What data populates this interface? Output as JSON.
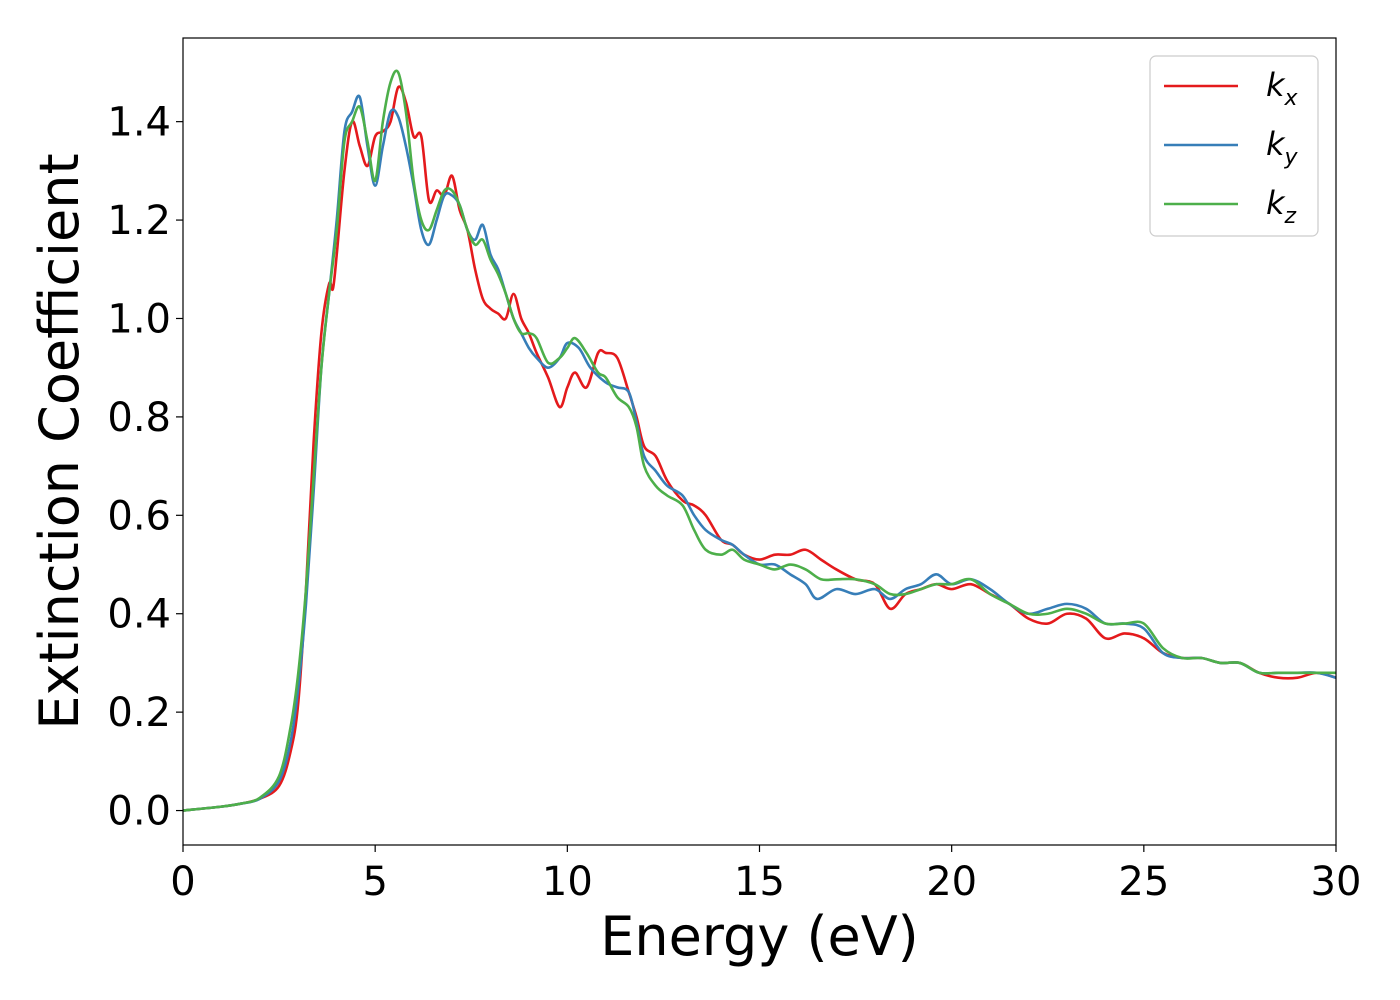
{
  "chart_data": {
    "type": "line",
    "title": "",
    "xlabel": "Energy (eV)",
    "ylabel": "Extinction Coefficient",
    "xlim": [
      0,
      30
    ],
    "ylim": [
      -0.07,
      1.57
    ],
    "xticks": [
      0,
      5,
      10,
      15,
      20,
      25,
      30
    ],
    "xtick_labels": [
      "0",
      "5",
      "10",
      "15",
      "20",
      "25",
      "30"
    ],
    "yticks": [
      0.0,
      0.2,
      0.4,
      0.6,
      0.8,
      1.0,
      1.2,
      1.4
    ],
    "ytick_labels": [
      "0.0",
      "0.2",
      "0.4",
      "0.6",
      "0.8",
      "1.0",
      "1.2",
      "1.4"
    ],
    "grid": false,
    "legend_position": "top-right",
    "series": [
      {
        "name": "k_x",
        "label_base": "k",
        "label_sub": "x",
        "color": "#e41a1c",
        "points": [
          [
            0,
            0.0
          ],
          [
            1,
            0.008
          ],
          [
            1.5,
            0.014
          ],
          [
            2,
            0.024
          ],
          [
            2.5,
            0.05
          ],
          [
            2.8,
            0.12
          ],
          [
            3.0,
            0.22
          ],
          [
            3.2,
            0.45
          ],
          [
            3.4,
            0.75
          ],
          [
            3.6,
            0.97
          ],
          [
            3.8,
            1.07
          ],
          [
            3.9,
            1.06
          ],
          [
            4.0,
            1.13
          ],
          [
            4.2,
            1.3
          ],
          [
            4.4,
            1.4
          ],
          [
            4.6,
            1.35
          ],
          [
            4.8,
            1.31
          ],
          [
            5.0,
            1.37
          ],
          [
            5.2,
            1.38
          ],
          [
            5.4,
            1.4
          ],
          [
            5.6,
            1.47
          ],
          [
            5.8,
            1.44
          ],
          [
            6.0,
            1.37
          ],
          [
            6.2,
            1.37
          ],
          [
            6.4,
            1.24
          ],
          [
            6.6,
            1.26
          ],
          [
            6.8,
            1.25
          ],
          [
            7.0,
            1.29
          ],
          [
            7.2,
            1.22
          ],
          [
            7.4,
            1.18
          ],
          [
            7.6,
            1.1
          ],
          [
            7.8,
            1.04
          ],
          [
            8.0,
            1.02
          ],
          [
            8.2,
            1.01
          ],
          [
            8.4,
            1.0
          ],
          [
            8.6,
            1.05
          ],
          [
            8.8,
            1.0
          ],
          [
            9.0,
            0.97
          ],
          [
            9.2,
            0.93
          ],
          [
            9.5,
            0.88
          ],
          [
            9.8,
            0.82
          ],
          [
            10.0,
            0.86
          ],
          [
            10.2,
            0.89
          ],
          [
            10.5,
            0.86
          ],
          [
            10.8,
            0.93
          ],
          [
            11.0,
            0.93
          ],
          [
            11.3,
            0.92
          ],
          [
            11.6,
            0.85
          ],
          [
            11.8,
            0.8
          ],
          [
            12.0,
            0.74
          ],
          [
            12.3,
            0.72
          ],
          [
            12.6,
            0.67
          ],
          [
            13.0,
            0.63
          ],
          [
            13.3,
            0.62
          ],
          [
            13.6,
            0.6
          ],
          [
            14.0,
            0.55
          ],
          [
            14.3,
            0.54
          ],
          [
            14.6,
            0.52
          ],
          [
            15.0,
            0.51
          ],
          [
            15.4,
            0.52
          ],
          [
            15.8,
            0.52
          ],
          [
            16.2,
            0.53
          ],
          [
            16.6,
            0.51
          ],
          [
            17.0,
            0.49
          ],
          [
            17.5,
            0.47
          ],
          [
            18.0,
            0.46
          ],
          [
            18.4,
            0.41
          ],
          [
            18.8,
            0.44
          ],
          [
            19.2,
            0.45
          ],
          [
            19.6,
            0.46
          ],
          [
            20.0,
            0.45
          ],
          [
            20.5,
            0.46
          ],
          [
            21.0,
            0.44
          ],
          [
            21.5,
            0.42
          ],
          [
            22.0,
            0.39
          ],
          [
            22.5,
            0.38
          ],
          [
            23.0,
            0.4
          ],
          [
            23.5,
            0.39
          ],
          [
            24.0,
            0.35
          ],
          [
            24.5,
            0.36
          ],
          [
            25.0,
            0.35
          ],
          [
            25.5,
            0.32
          ],
          [
            26.0,
            0.31
          ],
          [
            26.5,
            0.31
          ],
          [
            27.0,
            0.3
          ],
          [
            27.5,
            0.3
          ],
          [
            28.0,
            0.28
          ],
          [
            28.5,
            0.27
          ],
          [
            29.0,
            0.27
          ],
          [
            29.5,
            0.28
          ],
          [
            30.0,
            0.27
          ]
        ]
      },
      {
        "name": "k_y",
        "label_base": "k",
        "label_sub": "y",
        "color": "#377eb8",
        "points": [
          [
            0,
            0.0
          ],
          [
            1,
            0.008
          ],
          [
            1.5,
            0.014
          ],
          [
            2,
            0.024
          ],
          [
            2.5,
            0.06
          ],
          [
            2.8,
            0.14
          ],
          [
            3.0,
            0.25
          ],
          [
            3.2,
            0.42
          ],
          [
            3.4,
            0.65
          ],
          [
            3.6,
            0.9
          ],
          [
            3.8,
            1.05
          ],
          [
            4.0,
            1.2
          ],
          [
            4.2,
            1.38
          ],
          [
            4.4,
            1.42
          ],
          [
            4.6,
            1.45
          ],
          [
            4.8,
            1.35
          ],
          [
            5.0,
            1.27
          ],
          [
            5.2,
            1.35
          ],
          [
            5.4,
            1.42
          ],
          [
            5.6,
            1.41
          ],
          [
            5.8,
            1.35
          ],
          [
            6.0,
            1.27
          ],
          [
            6.2,
            1.18
          ],
          [
            6.4,
            1.15
          ],
          [
            6.6,
            1.2
          ],
          [
            6.8,
            1.25
          ],
          [
            7.0,
            1.25
          ],
          [
            7.2,
            1.23
          ],
          [
            7.4,
            1.18
          ],
          [
            7.6,
            1.16
          ],
          [
            7.8,
            1.19
          ],
          [
            8.0,
            1.13
          ],
          [
            8.2,
            1.1
          ],
          [
            8.4,
            1.05
          ],
          [
            8.6,
            1.0
          ],
          [
            8.8,
            0.97
          ],
          [
            9.0,
            0.94
          ],
          [
            9.2,
            0.92
          ],
          [
            9.5,
            0.9
          ],
          [
            9.8,
            0.92
          ],
          [
            10.0,
            0.95
          ],
          [
            10.3,
            0.94
          ],
          [
            10.6,
            0.9
          ],
          [
            11.0,
            0.87
          ],
          [
            11.3,
            0.86
          ],
          [
            11.6,
            0.85
          ],
          [
            11.8,
            0.79
          ],
          [
            12.0,
            0.72
          ],
          [
            12.3,
            0.69
          ],
          [
            12.6,
            0.66
          ],
          [
            13.0,
            0.64
          ],
          [
            13.3,
            0.6
          ],
          [
            13.6,
            0.57
          ],
          [
            14.0,
            0.55
          ],
          [
            14.3,
            0.54
          ],
          [
            14.6,
            0.52
          ],
          [
            15.0,
            0.5
          ],
          [
            15.4,
            0.5
          ],
          [
            15.8,
            0.48
          ],
          [
            16.2,
            0.46
          ],
          [
            16.5,
            0.43
          ],
          [
            17.0,
            0.45
          ],
          [
            17.5,
            0.44
          ],
          [
            18.0,
            0.45
          ],
          [
            18.4,
            0.43
          ],
          [
            18.8,
            0.45
          ],
          [
            19.2,
            0.46
          ],
          [
            19.6,
            0.48
          ],
          [
            20.0,
            0.46
          ],
          [
            20.5,
            0.47
          ],
          [
            21.0,
            0.45
          ],
          [
            21.5,
            0.42
          ],
          [
            22.0,
            0.4
          ],
          [
            22.5,
            0.41
          ],
          [
            23.0,
            0.42
          ],
          [
            23.5,
            0.41
          ],
          [
            24.0,
            0.38
          ],
          [
            24.5,
            0.38
          ],
          [
            25.0,
            0.37
          ],
          [
            25.5,
            0.32
          ],
          [
            26.0,
            0.31
          ],
          [
            26.5,
            0.31
          ],
          [
            27.0,
            0.3
          ],
          [
            27.5,
            0.3
          ],
          [
            28.0,
            0.28
          ],
          [
            28.5,
            0.28
          ],
          [
            29.0,
            0.28
          ],
          [
            29.5,
            0.28
          ],
          [
            30.0,
            0.27
          ]
        ]
      },
      {
        "name": "k_z",
        "label_base": "k",
        "label_sub": "z",
        "color": "#4daf4a",
        "points": [
          [
            0,
            0.0
          ],
          [
            1,
            0.008
          ],
          [
            1.5,
            0.014
          ],
          [
            2,
            0.026
          ],
          [
            2.5,
            0.07
          ],
          [
            2.8,
            0.17
          ],
          [
            3.0,
            0.28
          ],
          [
            3.2,
            0.45
          ],
          [
            3.4,
            0.68
          ],
          [
            3.6,
            0.9
          ],
          [
            3.8,
            1.05
          ],
          [
            4.0,
            1.18
          ],
          [
            4.2,
            1.36
          ],
          [
            4.4,
            1.4
          ],
          [
            4.6,
            1.43
          ],
          [
            4.8,
            1.36
          ],
          [
            5.0,
            1.28
          ],
          [
            5.2,
            1.4
          ],
          [
            5.4,
            1.48
          ],
          [
            5.6,
            1.5
          ],
          [
            5.8,
            1.42
          ],
          [
            6.0,
            1.28
          ],
          [
            6.2,
            1.2
          ],
          [
            6.4,
            1.18
          ],
          [
            6.6,
            1.22
          ],
          [
            6.8,
            1.26
          ],
          [
            7.0,
            1.26
          ],
          [
            7.2,
            1.23
          ],
          [
            7.4,
            1.18
          ],
          [
            7.6,
            1.15
          ],
          [
            7.8,
            1.16
          ],
          [
            8.0,
            1.12
          ],
          [
            8.2,
            1.09
          ],
          [
            8.4,
            1.05
          ],
          [
            8.6,
            1.0
          ],
          [
            8.8,
            0.97
          ],
          [
            9.0,
            0.97
          ],
          [
            9.2,
            0.96
          ],
          [
            9.5,
            0.91
          ],
          [
            9.8,
            0.92
          ],
          [
            10.0,
            0.94
          ],
          [
            10.2,
            0.96
          ],
          [
            10.5,
            0.93
          ],
          [
            10.8,
            0.89
          ],
          [
            11.0,
            0.88
          ],
          [
            11.3,
            0.84
          ],
          [
            11.6,
            0.82
          ],
          [
            11.8,
            0.78
          ],
          [
            12.0,
            0.7
          ],
          [
            12.3,
            0.66
          ],
          [
            12.6,
            0.64
          ],
          [
            13.0,
            0.62
          ],
          [
            13.3,
            0.57
          ],
          [
            13.6,
            0.53
          ],
          [
            14.0,
            0.52
          ],
          [
            14.3,
            0.53
          ],
          [
            14.6,
            0.51
          ],
          [
            15.0,
            0.5
          ],
          [
            15.4,
            0.49
          ],
          [
            15.8,
            0.5
          ],
          [
            16.2,
            0.49
          ],
          [
            16.6,
            0.47
          ],
          [
            17.0,
            0.47
          ],
          [
            17.5,
            0.47
          ],
          [
            18.0,
            0.46
          ],
          [
            18.4,
            0.44
          ],
          [
            18.8,
            0.44
          ],
          [
            19.2,
            0.45
          ],
          [
            19.6,
            0.46
          ],
          [
            20.0,
            0.46
          ],
          [
            20.5,
            0.47
          ],
          [
            21.0,
            0.44
          ],
          [
            21.5,
            0.42
          ],
          [
            22.0,
            0.4
          ],
          [
            22.5,
            0.4
          ],
          [
            23.0,
            0.41
          ],
          [
            23.5,
            0.4
          ],
          [
            24.0,
            0.38
          ],
          [
            24.5,
            0.38
          ],
          [
            25.0,
            0.38
          ],
          [
            25.5,
            0.33
          ],
          [
            26.0,
            0.31
          ],
          [
            26.5,
            0.31
          ],
          [
            27.0,
            0.3
          ],
          [
            27.5,
            0.3
          ],
          [
            28.0,
            0.28
          ],
          [
            28.5,
            0.28
          ],
          [
            29.0,
            0.28
          ],
          [
            29.5,
            0.28
          ],
          [
            30.0,
            0.28
          ]
        ]
      }
    ]
  }
}
